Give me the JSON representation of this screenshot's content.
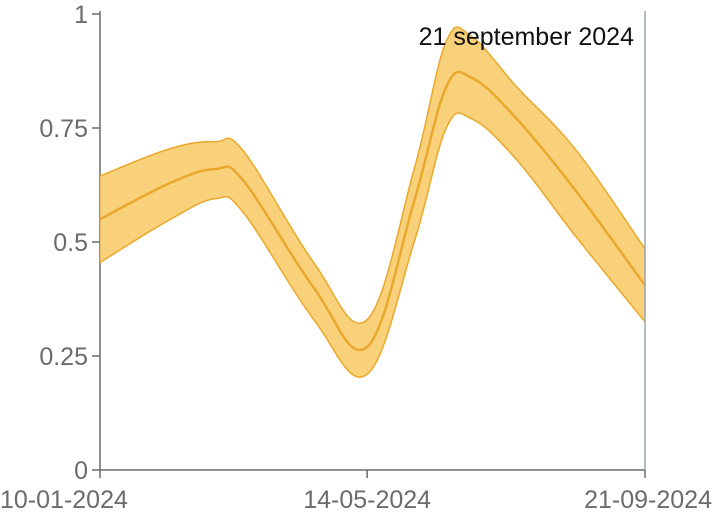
{
  "chart_data": {
    "type": "area",
    "x_axis": {
      "type": "date",
      "ticks": [
        "10-01-2024",
        "14-05-2024",
        "21-09-2024"
      ],
      "range": [
        "2024-01-10",
        "2024-09-21"
      ]
    },
    "y_axis": {
      "ticks": [
        "0",
        "0.25",
        "0.5",
        "0.75",
        "1"
      ],
      "range": [
        0,
        1
      ]
    },
    "cursor": {
      "date": "2024-09-21",
      "label": "21 september 2024"
    },
    "series": [
      {
        "line_color": "#E9A82B",
        "band_color": "#F8C964",
        "points": [
          {
            "x": "2024-01-10",
            "y": 0.55,
            "lower": 0.455,
            "upper": 0.645
          },
          {
            "x": "2024-02-12",
            "y": 0.63,
            "lower": 0.55,
            "upper": 0.705
          },
          {
            "x": "2024-03-04",
            "y": 0.66,
            "lower": 0.595,
            "upper": 0.72
          },
          {
            "x": "2024-03-17",
            "y": 0.635,
            "lower": 0.565,
            "upper": 0.7
          },
          {
            "x": "2024-04-19",
            "y": 0.4,
            "lower": 0.33,
            "upper": 0.455
          },
          {
            "x": "2024-05-14",
            "y": 0.27,
            "lower": 0.21,
            "upper": 0.33
          },
          {
            "x": "2024-06-05",
            "y": 0.59,
            "lower": 0.5,
            "upper": 0.66
          },
          {
            "x": "2024-06-20",
            "y": 0.84,
            "lower": 0.75,
            "upper": 0.94
          },
          {
            "x": "2024-07-02",
            "y": 0.86,
            "lower": 0.77,
            "upper": 0.95
          },
          {
            "x": "2024-07-23",
            "y": 0.77,
            "lower": 0.68,
            "upper": 0.84
          },
          {
            "x": "2024-08-20",
            "y": 0.61,
            "lower": 0.51,
            "upper": 0.7
          },
          {
            "x": "2024-09-21",
            "y": 0.405,
            "lower": 0.325,
            "upper": 0.485
          }
        ]
      }
    ]
  }
}
